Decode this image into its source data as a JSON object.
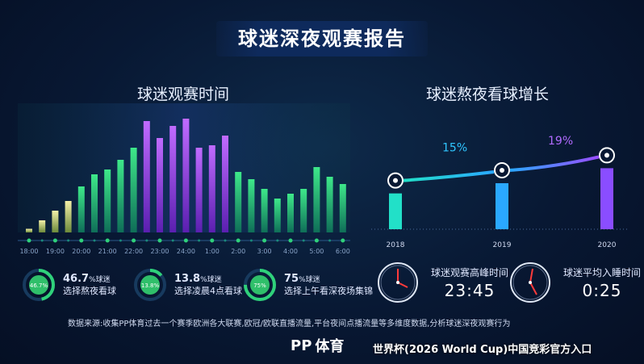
{
  "title": "球迷深夜观赛报告",
  "left_subtitle": "球迷观赛时间",
  "right_subtitle": "球迷熬夜看球增长",
  "chart_data": [
    {
      "type": "bar",
      "title": "球迷观赛时间",
      "x": [
        "18:00",
        "",
        "19:00",
        "",
        "20:00",
        "",
        "21:00",
        "",
        "22:00",
        "",
        "23:00",
        "",
        "24:00",
        "",
        "1:00",
        "",
        "2:00",
        "",
        "3:00",
        "",
        "4:00",
        "",
        "5:00",
        "",
        "6:00"
      ],
      "tick_labels": [
        "18:00",
        "19:00",
        "20:00",
        "21:00",
        "22:00",
        "23:00",
        "24:00",
        "1:00",
        "2:00",
        "3:00",
        "4:00",
        "5:00",
        "6:00"
      ],
      "values": [
        3,
        10,
        18,
        26,
        38,
        48,
        52,
        60,
        70,
        92,
        78,
        88,
        94,
        70,
        72,
        80,
        50,
        44,
        36,
        28,
        32,
        36,
        54,
        46,
        40
      ],
      "highlight_range": [
        9,
        15
      ],
      "ylim": [
        0,
        100
      ]
    },
    {
      "type": "bar",
      "title": "球迷熬夜看球增长",
      "categories": [
        "2018",
        "2019",
        "2020"
      ],
      "values": [
        100,
        115,
        137
      ],
      "annotations": [
        "15%",
        "19%"
      ],
      "ylim": [
        0,
        160
      ]
    }
  ],
  "stats": [
    {
      "donut_label": "46.7%",
      "value": "46.7",
      "unit": "%球迷",
      "desc": "选择熬夜看球",
      "fraction": 0.467
    },
    {
      "donut_label": "13.8%",
      "value": "13.8",
      "unit": "%球迷",
      "desc": "选择凌晨4点看球",
      "fraction": 0.138
    },
    {
      "donut_label": "75%",
      "value": "75",
      "unit": "%球迷",
      "desc": "选择上午看深夜场集锦",
      "fraction": 0.75
    }
  ],
  "clocks": [
    {
      "label": "球迷观赛高峰时间",
      "time": "23:45"
    },
    {
      "label": "球迷平均入睡时间",
      "time": "0:25"
    }
  ],
  "source": "数据来源:收集PP体育过去一个赛季欧洲各大联赛,欧冠/欧联直播流量,平台夜间点播流量等多维度数据,分析球迷深夜观赛行为",
  "logo_text": "体育",
  "logo_mark": "PP",
  "watermark": "世界杯(2026 World Cup)中国竞彩官方入口",
  "colors": {
    "green": "#2fd17a",
    "purple": "#a64dff",
    "teal": "#22e0c8",
    "blue": "#2aa8ff",
    "violet": "#7a3cff"
  }
}
